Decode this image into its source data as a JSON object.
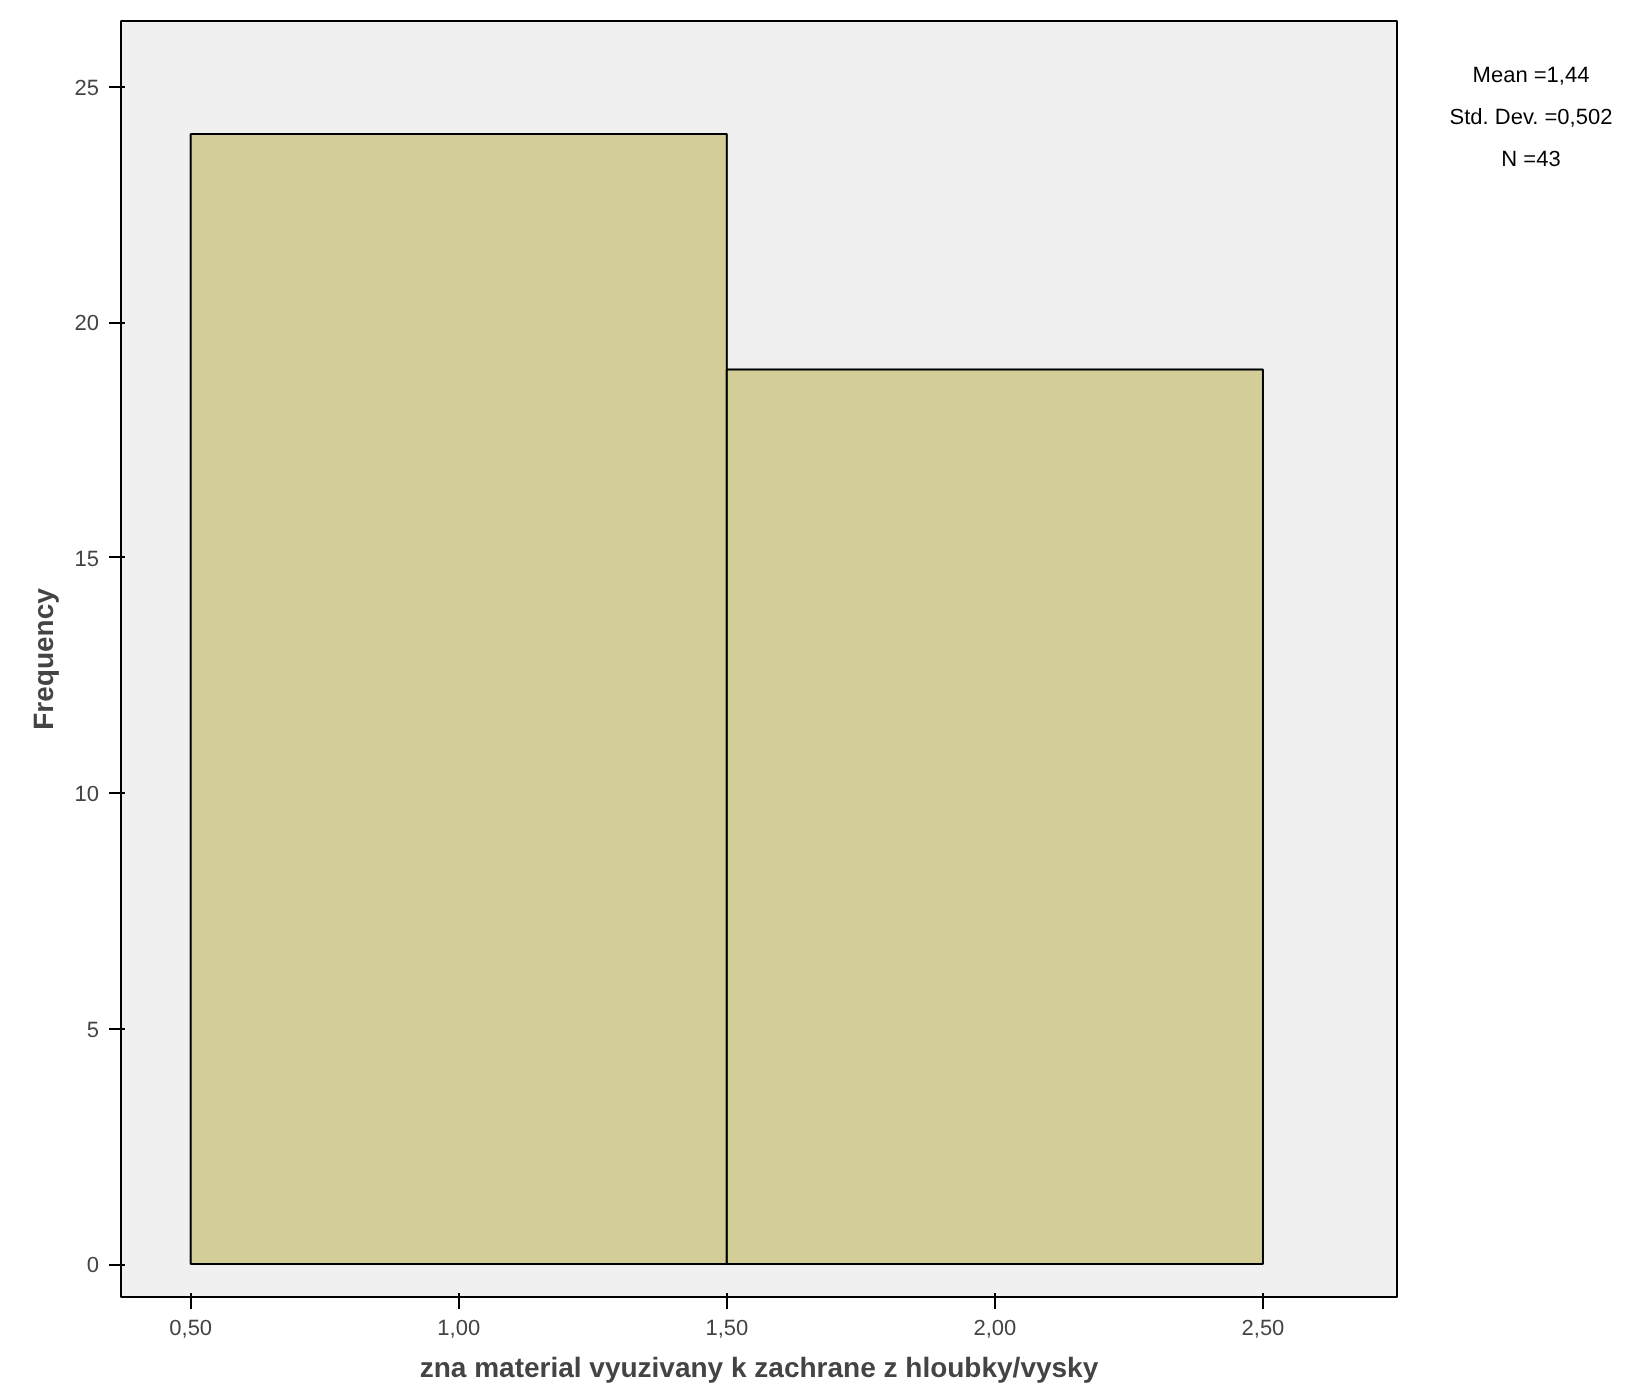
{
  "chart_data": {
    "type": "histogram",
    "xlabel": "zna material vyuzivany k zachrane z hloubky/vysky",
    "ylabel": "Frequency",
    "bins": [
      0.5,
      1.5,
      2.5
    ],
    "values": [
      24,
      19
    ],
    "color": "#d3ce97",
    "xlim": [
      0.37,
      2.75
    ],
    "ylim": [
      -0.7,
      26.4
    ],
    "xticks": [
      {
        "value": 0.5,
        "label": "0,50"
      },
      {
        "value": 1.0,
        "label": "1,00"
      },
      {
        "value": 1.5,
        "label": "1,50"
      },
      {
        "value": 2.0,
        "label": "2,00"
      },
      {
        "value": 2.5,
        "label": "2,50"
      }
    ],
    "yticks": [
      0,
      5,
      10,
      15,
      20,
      25
    ],
    "grid": false,
    "annotations": [
      "Mean =1,44",
      "Std. Dev. =0,502",
      "N =43"
    ]
  }
}
